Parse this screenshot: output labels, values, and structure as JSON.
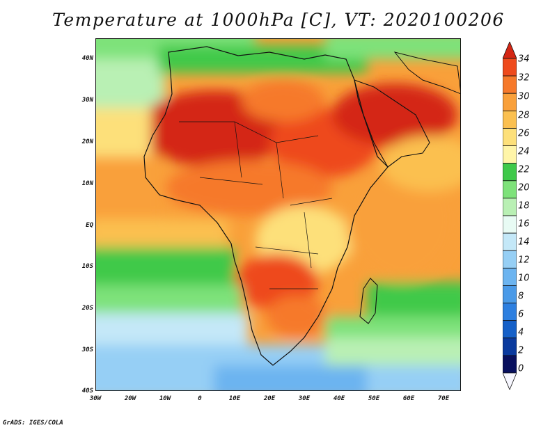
{
  "title": "Temperature at 1000hPa [C], VT: 2020100206",
  "credit": "GrADS: IGES/COLA",
  "map": {
    "lon_range": [
      -30,
      75
    ],
    "lat_range": [
      -40,
      45
    ],
    "lat_labels": [
      "40N",
      "30N",
      "20N",
      "10N",
      "EQ",
      "10S",
      "20S",
      "30S",
      "40S"
    ],
    "lat_values": [
      40,
      30,
      20,
      10,
      0,
      -10,
      -20,
      -30,
      -40
    ],
    "lon_labels": [
      "30W",
      "20W",
      "10W",
      "0",
      "10E",
      "20E",
      "30E",
      "40E",
      "50E",
      "60E",
      "70E"
    ],
    "lon_values": [
      -30,
      -20,
      -10,
      0,
      10,
      20,
      30,
      40,
      50,
      60,
      70
    ],
    "variable": "Temperature at 1000hPa",
    "units": "C"
  },
  "colorbar": {
    "labels": [
      "34",
      "32",
      "30",
      "28",
      "26",
      "24",
      "22",
      "20",
      "18",
      "16",
      "14",
      "12",
      "10",
      "8",
      "6",
      "4",
      "2",
      "0"
    ],
    "colors": [
      "#f7f7ff",
      "#08105e",
      "#0a3a9e",
      "#1560c8",
      "#2d7fe0",
      "#4a9ae8",
      "#6cb4f0",
      "#96cff5",
      "#c4e8f8",
      "#e8fbf4",
      "#b9f0b4",
      "#7ee27a",
      "#3fc94a",
      "#fff5a8",
      "#fde07a",
      "#fbc050",
      "#f9a03a",
      "#f6792a",
      "#ee4a1c",
      "#d42614"
    ]
  }
}
